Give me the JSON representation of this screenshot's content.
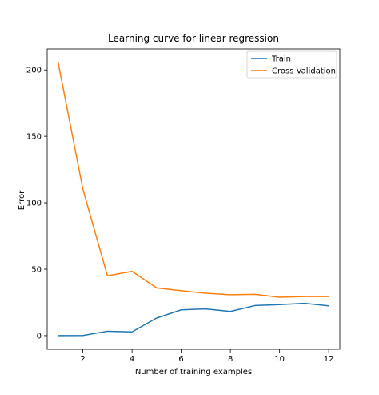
{
  "chart_data": {
    "type": "line",
    "title": "Learning curve for linear regression",
    "xlabel": "Number of training examples",
    "ylabel": "Error",
    "xlim": [
      0.55,
      12.45
    ],
    "ylim": [
      -10.3,
      215.8
    ],
    "xticks": [
      2,
      4,
      6,
      8,
      10,
      12
    ],
    "yticks": [
      0,
      50,
      100,
      150,
      200
    ],
    "grid": false,
    "legend_position": "top-right",
    "x": [
      1,
      2,
      3,
      4,
      5,
      6,
      7,
      8,
      9,
      10,
      11,
      12
    ],
    "series": [
      {
        "name": "Train",
        "color": "#1f77b4",
        "values": [
          0.0,
          0.1,
          3.3,
          2.8,
          13.2,
          19.4,
          20.1,
          18.2,
          22.6,
          23.3,
          24.3,
          22.4
        ]
      },
      {
        "name": "Cross Validation",
        "color": "#ff7f0e",
        "values": [
          205.1,
          110.3,
          45.0,
          48.4,
          35.9,
          33.8,
          31.9,
          30.8,
          31.1,
          28.9,
          29.4,
          29.4
        ]
      }
    ]
  }
}
